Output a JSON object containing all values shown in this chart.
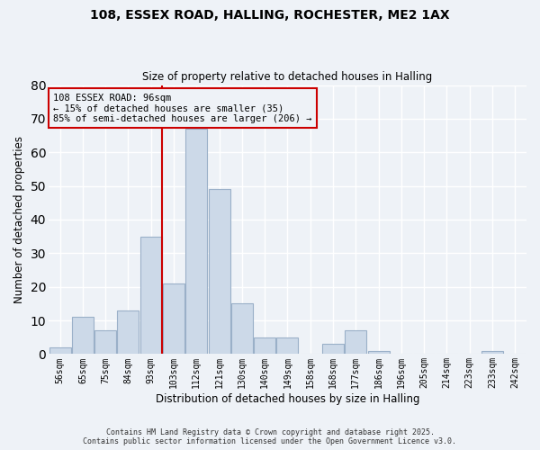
{
  "title1": "108, ESSEX ROAD, HALLING, ROCHESTER, ME2 1AX",
  "title2": "Size of property relative to detached houses in Halling",
  "xlabel": "Distribution of detached houses by size in Halling",
  "ylabel": "Number of detached properties",
  "bar_labels": [
    "56sqm",
    "65sqm",
    "75sqm",
    "84sqm",
    "93sqm",
    "103sqm",
    "112sqm",
    "121sqm",
    "130sqm",
    "140sqm",
    "149sqm",
    "158sqm",
    "168sqm",
    "177sqm",
    "186sqm",
    "196sqm",
    "205sqm",
    "214sqm",
    "223sqm",
    "233sqm",
    "242sqm"
  ],
  "bar_values": [
    2,
    11,
    7,
    13,
    35,
    21,
    67,
    49,
    15,
    5,
    5,
    0,
    3,
    7,
    1,
    0,
    0,
    0,
    0,
    1,
    0
  ],
  "bar_color": "#ccd9e8",
  "bar_edgecolor": "#9ab0c8",
  "vline_x": 4.5,
  "vline_color": "#cc0000",
  "ylim": [
    0,
    80
  ],
  "yticks": [
    0,
    10,
    20,
    30,
    40,
    50,
    60,
    70,
    80
  ],
  "annotation_text": "108 ESSEX ROAD: 96sqm\n← 15% of detached houses are smaller (35)\n85% of semi-detached houses are larger (206) →",
  "bg_color": "#eef2f7",
  "grid_color": "#ffffff",
  "footer1": "Contains HM Land Registry data © Crown copyright and database right 2025.",
  "footer2": "Contains public sector information licensed under the Open Government Licence v3.0."
}
